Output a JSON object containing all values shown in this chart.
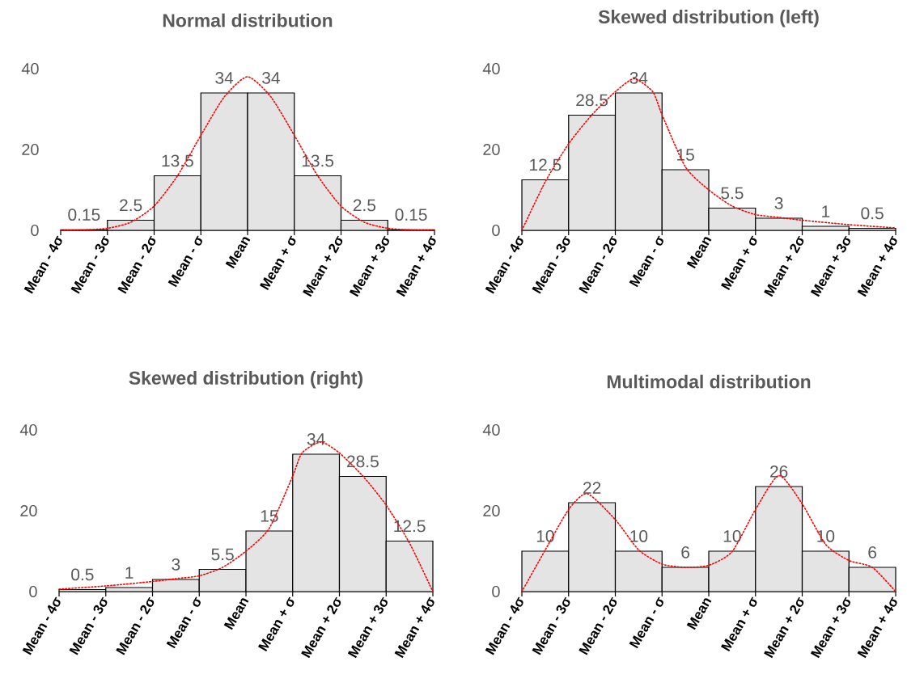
{
  "chart_data": [
    {
      "type": "histogram",
      "title": "Normal distribution",
      "bins": [
        -4,
        -3,
        -2,
        -1,
        0,
        1,
        2,
        3,
        4
      ],
      "values": [
        0.15,
        2.5,
        13.5,
        34,
        34,
        13.5,
        2.5,
        0.15
      ],
      "value_labels": [
        "0.15",
        "2.5",
        "13.5",
        "34",
        "34",
        "13.5",
        "2.5",
        "0.15"
      ],
      "color": "#e4e4e4",
      "xlim": [
        -4,
        4
      ],
      "ylim": [
        0,
        40
      ],
      "yticks": [
        0,
        20,
        40
      ],
      "xticks": [
        {
          "value": -4,
          "label": "Mean - 4σ"
        },
        {
          "value": -3,
          "label": "Mean - 3σ"
        },
        {
          "value": -2,
          "label": "Mean - 2σ"
        },
        {
          "value": -1,
          "label": "Mean - σ"
        },
        {
          "value": 0,
          "label": "Mean"
        },
        {
          "value": 1,
          "label": "Mean + σ"
        },
        {
          "value": 2,
          "label": "Mean + 2σ"
        },
        {
          "value": 3,
          "label": "Mean + 3σ"
        },
        {
          "value": 4,
          "label": "Mean + 4σ"
        }
      ],
      "grid": false,
      "series": [
        {
          "type": "line",
          "color": "#ff0000",
          "line_style": "dotted",
          "x": [
            -4,
            -3.5,
            -3,
            -2.5,
            -2,
            -1.5,
            -1,
            -0.5,
            0,
            0.5,
            1,
            1.5,
            2,
            2.5,
            3,
            3.5,
            4
          ],
          "values": [
            0,
            0.1,
            0.5,
            2,
            6,
            13.5,
            23.5,
            33,
            38,
            33,
            23.5,
            13.5,
            6,
            2,
            0.5,
            0.1,
            0
          ]
        }
      ]
    },
    {
      "type": "histogram",
      "title": "Skewed distribution (left)",
      "bins": [
        -4,
        -3,
        -2,
        -1,
        0,
        1,
        2,
        3,
        4
      ],
      "values": [
        12.5,
        28.5,
        34,
        15,
        5.5,
        3,
        1,
        0.5
      ],
      "value_labels": [
        "12.5",
        "28.5",
        "34",
        "15",
        "5.5",
        "3",
        "1",
        "0.5"
      ],
      "color": "#e4e4e4",
      "xlim": [
        -4,
        4
      ],
      "ylim": [
        0,
        40
      ],
      "yticks": [
        0,
        20,
        40
      ],
      "xticks": [
        {
          "value": -4,
          "label": "Mean - 4σ"
        },
        {
          "value": -3,
          "label": "Mean - 3σ"
        },
        {
          "value": -2,
          "label": "Mean - 2σ"
        },
        {
          "value": -1,
          "label": "Mean - σ"
        },
        {
          "value": 0,
          "label": "Mean"
        },
        {
          "value": 1,
          "label": "Mean + σ"
        },
        {
          "value": 2,
          "label": "Mean + 2σ"
        },
        {
          "value": 3,
          "label": "Mean + 3σ"
        },
        {
          "value": 4,
          "label": "Mean + 4σ"
        }
      ],
      "grid": false,
      "series": [
        {
          "type": "line",
          "color": "#ff0000",
          "line_style": "dotted",
          "x": [
            -4,
            -3.5,
            -3,
            -2.5,
            -2,
            -1.6,
            -1.2,
            -1,
            -0.5,
            0,
            0.5,
            1,
            1.5,
            2,
            3,
            4
          ],
          "values": [
            0,
            12,
            21.4,
            28.6,
            34.3,
            37.5,
            34.3,
            28.6,
            15.7,
            10,
            6,
            3.9,
            3.2,
            2.5,
            1.4,
            0.6
          ]
        }
      ]
    },
    {
      "type": "histogram",
      "title": "Skewed distribution (right)",
      "bins": [
        -4,
        -3,
        -2,
        -1,
        0,
        1,
        2,
        3,
        4
      ],
      "values": [
        0.5,
        1,
        3,
        5.5,
        15,
        34,
        28.5,
        12.5
      ],
      "value_labels": [
        "0.5",
        "1",
        "3",
        "5.5",
        "15",
        "34",
        "28.5",
        "12.5"
      ],
      "color": "#e4e4e4",
      "xlim": [
        -4,
        4
      ],
      "ylim": [
        0,
        40
      ],
      "yticks": [
        0,
        20,
        40
      ],
      "xticks": [
        {
          "value": -4,
          "label": "Mean - 4σ"
        },
        {
          "value": -3,
          "label": "Mean - 3σ"
        },
        {
          "value": -2,
          "label": "Mean - 2σ"
        },
        {
          "value": -1,
          "label": "Mean - σ"
        },
        {
          "value": 0,
          "label": "Mean"
        },
        {
          "value": 1,
          "label": "Mean + σ"
        },
        {
          "value": 2,
          "label": "Mean + 2σ"
        },
        {
          "value": 3,
          "label": "Mean + 3σ"
        },
        {
          "value": 4,
          "label": "Mean + 4σ"
        }
      ],
      "grid": false,
      "series": [
        {
          "type": "line",
          "color": "#ff0000",
          "line_style": "dotted",
          "x": [
            -4,
            -3,
            -2,
            -1.5,
            -1,
            -0.5,
            0,
            0.5,
            1,
            1.2,
            1.6,
            2,
            2.5,
            3,
            3.5,
            4
          ],
          "values": [
            0.6,
            1.4,
            2.5,
            3.2,
            3.9,
            6,
            10,
            15.7,
            28.6,
            34.3,
            37,
            34.3,
            28.6,
            21.4,
            12,
            0
          ]
        }
      ]
    },
    {
      "type": "histogram",
      "title": "Multimodal distribution",
      "bins": [
        -4,
        -3,
        -2,
        -1,
        0,
        1,
        2,
        3,
        4
      ],
      "values": [
        10,
        22,
        10,
        6,
        10,
        26,
        10,
        6
      ],
      "value_labels": [
        "10",
        "22",
        "10",
        "6",
        "10",
        "26",
        "10",
        "6"
      ],
      "color": "#e4e4e4",
      "xlim": [
        -4,
        4
      ],
      "ylim": [
        0,
        40
      ],
      "yticks": [
        0,
        20,
        40
      ],
      "xticks": [
        {
          "value": -4,
          "label": "Mean - 4σ"
        },
        {
          "value": -3,
          "label": "Mean - 3σ"
        },
        {
          "value": -2,
          "label": "Mean - 2σ"
        },
        {
          "value": -1,
          "label": "Mean - σ"
        },
        {
          "value": 0,
          "label": "Mean"
        },
        {
          "value": 1,
          "label": "Mean + σ"
        },
        {
          "value": 2,
          "label": "Mean + 2σ"
        },
        {
          "value": 3,
          "label": "Mean + 3σ"
        },
        {
          "value": 4,
          "label": "Mean + 4σ"
        }
      ],
      "grid": false,
      "series": [
        {
          "type": "line",
          "color": "#ff0000",
          "line_style": "dotted",
          "x": [
            -4,
            -3.5,
            -3,
            -2.6,
            -2,
            -1.5,
            -1,
            -0.5,
            0,
            0.5,
            1,
            1.5,
            2,
            2.5,
            3,
            3.5,
            4
          ],
          "values": [
            0,
            10.3,
            20.3,
            24.2,
            17.8,
            10.3,
            6.8,
            6,
            6.5,
            9.9,
            20.3,
            28.7,
            21.7,
            11.7,
            7.7,
            6,
            0
          ]
        }
      ]
    }
  ]
}
